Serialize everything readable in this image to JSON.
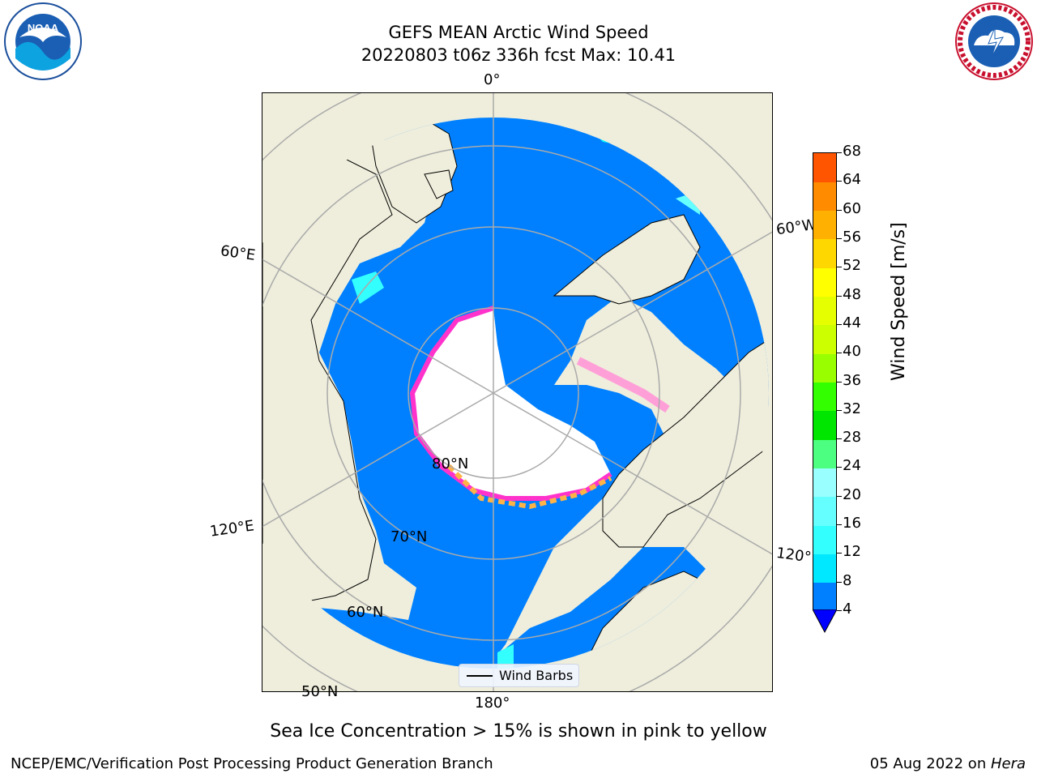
{
  "title_line1": "GEFS MEAN Arctic Wind Speed",
  "title_line2": "20220803 t06z 336h fcst   Max: 10.41",
  "map": {
    "meridian_labels": {
      "lon0": "0°",
      "lon60e": "60°E",
      "lon60w": "60°W",
      "lon120e": "120°E",
      "lon120w": "120°W",
      "lon180": "180°"
    },
    "parallel_labels": {
      "lat80": "80°N",
      "lat70": "70°N",
      "lat60": "60°N",
      "lat50": "50°N"
    },
    "legend_label": "Wind Barbs",
    "fill_colors": {
      "ocean_wind": "#0080ff",
      "land": "#efeedc",
      "ice": "#ffffff",
      "ice_edge": "#ff33cc",
      "ice_warm": "#ffb347",
      "light_wind": "#00ffff"
    }
  },
  "colorbar": {
    "label": "Wind Speed [m/s]",
    "ticks": [
      "4",
      "8",
      "12",
      "16",
      "20",
      "24",
      "28",
      "32",
      "36",
      "40",
      "44",
      "48",
      "52",
      "56",
      "60",
      "64",
      "68"
    ],
    "colors": [
      "#0080ff",
      "#00e8ff",
      "#33ffff",
      "#66ffff",
      "#99ffff",
      "#4cff80",
      "#00e600",
      "#33ff00",
      "#99ff00",
      "#ccff00",
      "#e6ff00",
      "#ffff00",
      "#ffd700",
      "#ffb000",
      "#ff8c00",
      "#ff5500",
      "#ff2200",
      "#ff0000"
    ],
    "extend_color": "#0000ff"
  },
  "caption": "Sea Ice Concentration > 15% is shown in pink to yellow",
  "footer_left": "NCEP/EMC/Verification Post Processing Product Generation Branch",
  "footer_date": "05 Aug 2022 on ",
  "footer_host": "Hera",
  "logos": {
    "left": "NOAA",
    "right": "NATIONAL WEATHER SERVICE"
  }
}
